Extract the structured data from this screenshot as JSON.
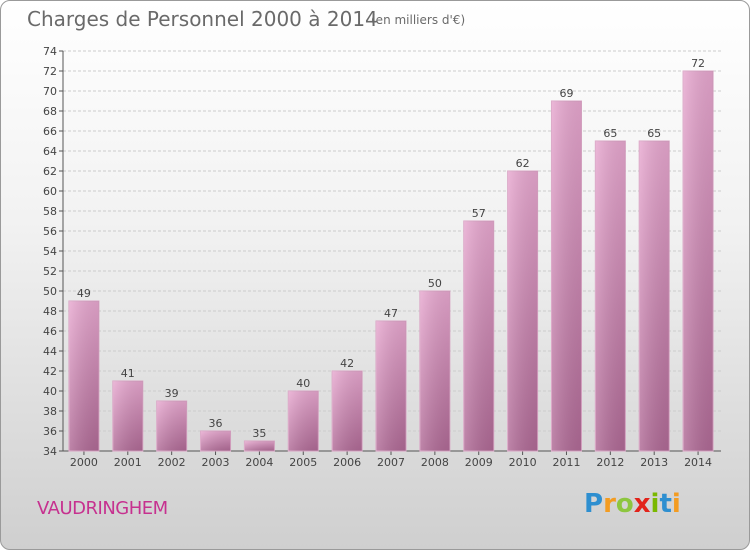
{
  "title": "Charges de Personnel 2000 à 2014",
  "subtitle": "(en milliers d'€)",
  "commune": "VAUDRINGHEM",
  "logo": "Proxiti",
  "colors": {
    "bar_top": "#e8a8d0",
    "bar_bottom": "#b06a96",
    "commune_text": "#c6318f"
  },
  "chart_data": {
    "type": "bar",
    "title": "Charges de Personnel 2000 à 2014",
    "subtitle": "(en milliers d'€)",
    "categories": [
      "2000",
      "2001",
      "2002",
      "2003",
      "2004",
      "2005",
      "2006",
      "2007",
      "2008",
      "2009",
      "2010",
      "2011",
      "2012",
      "2013",
      "2014"
    ],
    "values": [
      49,
      41,
      39,
      36,
      35,
      40,
      42,
      47,
      50,
      57,
      62,
      69,
      65,
      65,
      72
    ],
    "ylim": [
      34,
      74
    ],
    "ytick_step": 2,
    "grid": true,
    "data_labels": true
  }
}
